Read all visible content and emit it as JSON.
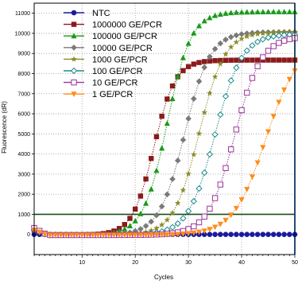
{
  "chart_data": {
    "type": "line",
    "title": "",
    "xlabel": "Cycles",
    "ylabel": "Fluorescence (dR)",
    "xlim": [
      1,
      50
    ],
    "ylim": [
      -1000,
      11500
    ],
    "x_ticks": [
      10,
      20,
      30,
      40,
      50
    ],
    "y_ticks": [
      0,
      1000,
      2000,
      3000,
      4000,
      5000,
      6000,
      7000,
      8000,
      9000,
      10000,
      11000
    ],
    "threshold": 1000,
    "threshold_color": "#1e4d1e",
    "grid": "dotted",
    "legend_position": "top-left",
    "cycle_marker": 50,
    "cycle_marker_color": "#1a7fd8",
    "series": [
      {
        "name": "NTC",
        "color": "#1a1aa0",
        "marker": "circle",
        "params": {
          "base": 0,
          "plateau": 0,
          "cq": 0,
          "k": 0
        }
      },
      {
        "name": "1000000 GE/PCR",
        "color": "#8b1a1a",
        "marker": "square",
        "params": {
          "base": -30,
          "plateau": 8700,
          "cq": 23.5,
          "k": 0.5
        }
      },
      {
        "name": "100000 GE/PCR",
        "color": "#1a9a1a",
        "marker": "triangle-up",
        "params": {
          "base": -30,
          "plateau": 11100,
          "cq": 26.0,
          "k": 0.45
        }
      },
      {
        "name": "10000 GE/PCR",
        "color": "#7a7a7a",
        "marker": "diamond",
        "params": {
          "base": -30,
          "plateau": 10100,
          "cq": 29.3,
          "k": 0.42
        }
      },
      {
        "name": "1000 GE/PCR",
        "color": "#8c8c2a",
        "marker": "star",
        "params": {
          "base": -30,
          "plateau": 10100,
          "cq": 32.0,
          "k": 0.42
        }
      },
      {
        "name": "100 GE/PCR",
        "color": "#1a8a8a",
        "marker": "diamond-open",
        "params": {
          "base": -30,
          "plateau": 10000,
          "cq": 35.0,
          "k": 0.4
        }
      },
      {
        "name": "10 GE/PCR",
        "color": "#993399",
        "marker": "square-open",
        "params": {
          "base": -30,
          "plateau": 9900,
          "cq": 38.7,
          "k": 0.4
        }
      },
      {
        "name": "1 GE/PCR",
        "color": "#ff8c1a",
        "marker": "triangle-down",
        "params": {
          "base": -30,
          "plateau": 9500,
          "cq": 44.5,
          "k": 0.33
        }
      }
    ]
  }
}
